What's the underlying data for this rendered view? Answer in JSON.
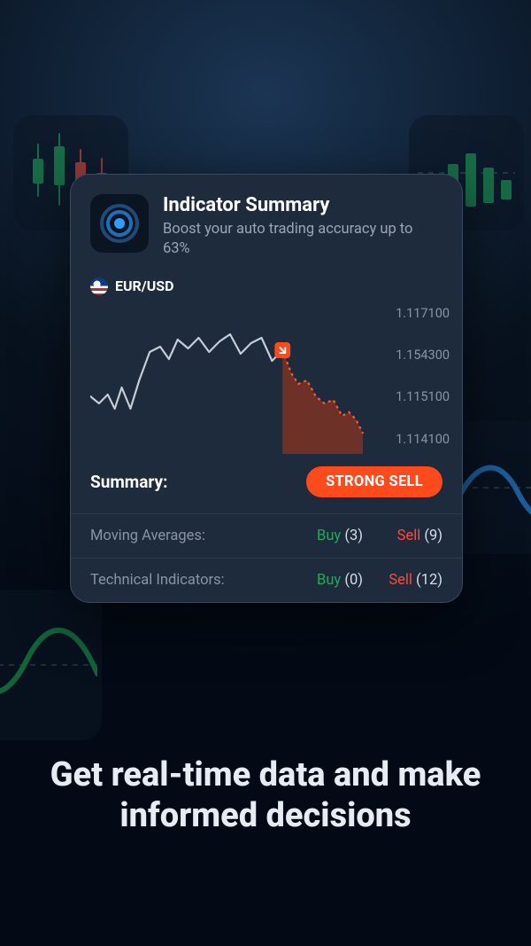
{
  "card": {
    "title": "Indicator Summary",
    "subtitle": "Boost your auto trading accuracy up to 63%",
    "icon_outer_color": "#1e4b78",
    "icon_mid_color": "#1f6fb8",
    "icon_core_color": "#2f9dff"
  },
  "pair": {
    "label": "EUR/USD"
  },
  "chart": {
    "type": "line-area",
    "line_color": "#c6cdd6",
    "line_width": 2.2,
    "forecast_fill": "#b13615",
    "forecast_stroke": "#ff5a2a",
    "marker_color": "#ff4a1c",
    "history": [
      [
        0,
        110
      ],
      [
        10,
        118
      ],
      [
        20,
        108
      ],
      [
        28,
        124
      ],
      [
        36,
        100
      ],
      [
        46,
        124
      ],
      [
        56,
        92
      ],
      [
        68,
        60
      ],
      [
        80,
        54
      ],
      [
        90,
        68
      ],
      [
        100,
        46
      ],
      [
        112,
        56
      ],
      [
        124,
        44
      ],
      [
        136,
        60
      ],
      [
        148,
        48
      ],
      [
        160,
        40
      ],
      [
        172,
        62
      ],
      [
        184,
        50
      ],
      [
        196,
        44
      ],
      [
        208,
        70
      ],
      [
        220,
        58
      ]
    ],
    "forecast": [
      [
        220,
        58
      ],
      [
        230,
        84
      ],
      [
        238,
        96
      ],
      [
        248,
        92
      ],
      [
        258,
        110
      ],
      [
        268,
        118
      ],
      [
        278,
        114
      ],
      [
        288,
        132
      ],
      [
        296,
        128
      ],
      [
        304,
        136
      ],
      [
        312,
        152
      ]
    ],
    "yticks": [
      "1.117100",
      "1.154300",
      "1.115100",
      "1.114100"
    ]
  },
  "summary": {
    "label": "Summary:",
    "badge": "STRONG SELL",
    "badge_bg": "#ff4a1c"
  },
  "indicators": [
    {
      "name": "Moving Averages:",
      "buy_label": "Buy",
      "buy_count": "(3)",
      "sell_label": "Sell",
      "sell_count": "(9)"
    },
    {
      "name": "Technical Indicators:",
      "buy_label": "Buy",
      "buy_count": "(0)",
      "sell_label": "Sell",
      "sell_count": "(12)"
    }
  ],
  "headline": "Get real-time data and make informed decisions",
  "colors": {
    "card_bg": "#1d2b3c",
    "card_border": "#3a4a5e",
    "muted_text": "#8894a3",
    "buy": "#1faa59",
    "sell": "#ff4a3a",
    "divider": "#2b3a4d"
  },
  "bg_tiles": {
    "candles_green": "#1faa59",
    "candles_red": "#ff4a3a",
    "bars_green": "#1faa59",
    "wave_blue": "#2f9dff",
    "wave_green": "#1faa59",
    "dash": "#3a4a5e"
  }
}
